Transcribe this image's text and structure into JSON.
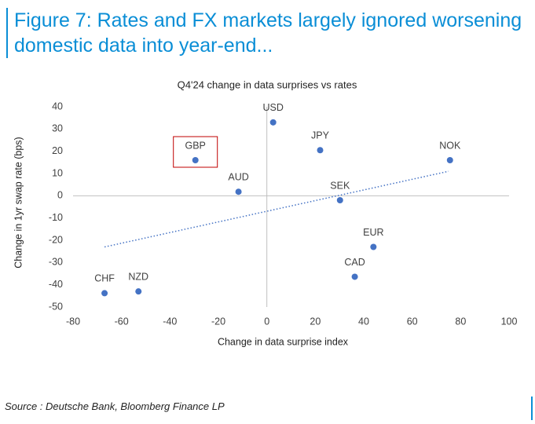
{
  "figure_title": "Figure 7: Rates and FX markets largely ignored worsening domestic data into year-end...",
  "source": "Source : Deutsche Bank, Bloomberg Finance LP",
  "chart_data": {
    "type": "scatter",
    "title": "Q4'24 change in data surprises vs rates",
    "xlabel": "Change in data surprise index",
    "ylabel": "Change in 1yr swap rate (bps)",
    "labels": [
      "USD",
      "JPY",
      "NOK",
      "GBP",
      "AUD",
      "SEK",
      "EUR",
      "CAD",
      "CHF",
      "NZD"
    ],
    "x": [
      2.6,
      22,
      75.6,
      -29.5,
      -11.7,
      30.2,
      44,
      36.3,
      -67,
      -53
    ],
    "y": [
      33,
      20.5,
      16,
      16,
      1.8,
      -2,
      -23,
      -36.4,
      -43.8,
      -43
    ],
    "color": "#4472c4",
    "highlight": "GBP",
    "highlight_color": "#c00000",
    "trendline": {
      "x": [
        -67,
        75
      ],
      "y": [
        -23,
        11
      ],
      "style": "dotted"
    },
    "xlim": [
      -80,
      100
    ],
    "xticks": [
      -80,
      -60,
      -40,
      -20,
      0,
      20,
      40,
      60,
      80,
      100
    ],
    "ylim": [
      -50,
      40
    ],
    "yticks": [
      -50,
      -40,
      -30,
      -20,
      -10,
      0,
      10,
      20,
      30,
      40
    ]
  }
}
